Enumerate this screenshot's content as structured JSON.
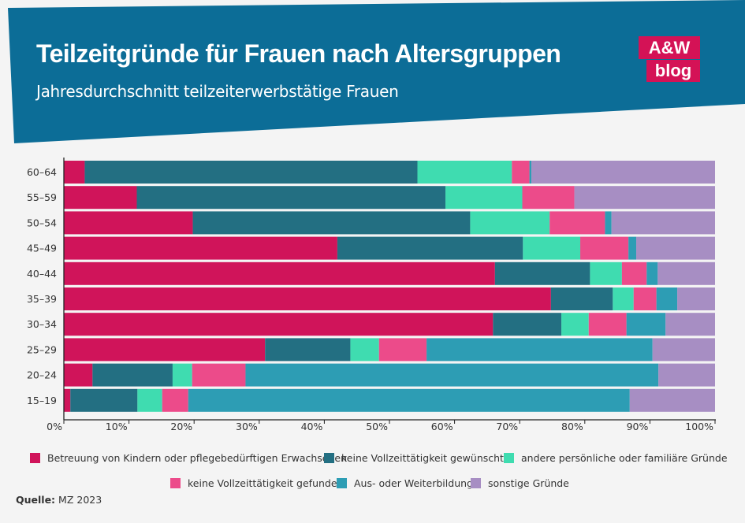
{
  "header": {
    "title": "Teilzeitgründe für Frauen nach Altersgruppen",
    "subtitle": "Jahresdurchschnitt teilzeiterwerbstätige Frauen",
    "banner_color": "#0c6d97"
  },
  "logo": {
    "line1": "A&W",
    "line2": "blog",
    "color": "#d41256"
  },
  "source": {
    "label": "Quelle:",
    "value": "MZ 2023"
  },
  "chart_data": {
    "type": "bar",
    "orientation": "horizontal",
    "stacked": true,
    "normalized": true,
    "title": "Teilzeitgründe für Frauen nach Altersgruppen",
    "xlabel": "",
    "ylabel": "",
    "xlim": [
      0,
      100
    ],
    "x_ticks": [
      "0%",
      "10%",
      "20%",
      "30%",
      "40%",
      "50%",
      "60%",
      "70%",
      "80%",
      "90%",
      "100%"
    ],
    "categories": [
      "60–64",
      "55–59",
      "50–54",
      "45–49",
      "40–44",
      "35–39",
      "30–34",
      "25–29",
      "20–24",
      "15–19"
    ],
    "legend_position": "bottom",
    "series": [
      {
        "name": "Betreuung von Kindern oder pflegebedürftigen Erwachsenen",
        "color": "#d0145a",
        "values": [
          3.2,
          11.2,
          19.8,
          42.0,
          66.2,
          74.8,
          65.9,
          30.9,
          4.4,
          1.0
        ]
      },
      {
        "name": "keine Vollzeittätigkeit gewünscht",
        "color": "#236f82",
        "values": [
          51.1,
          47.4,
          42.6,
          28.5,
          14.6,
          9.5,
          10.5,
          13.1,
          12.3,
          10.3
        ]
      },
      {
        "name": "andere persönliche oder familiäre Gründe",
        "color": "#3fdcb0",
        "values": [
          14.5,
          11.8,
          12.2,
          8.8,
          4.9,
          3.2,
          4.2,
          4.4,
          3.0,
          3.8
        ]
      },
      {
        "name": "keine Vollzeittätigkeit gefunden",
        "color": "#ec4b8a",
        "values": [
          2.7,
          8.0,
          8.5,
          7.4,
          3.8,
          3.5,
          5.8,
          7.3,
          8.2,
          4.0
        ]
      },
      {
        "name": "Aus- oder Weiterbildung",
        "color": "#2d9db4",
        "values": [
          0.3,
          0,
          1.0,
          1.2,
          1.7,
          3.2,
          6.0,
          34.7,
          63.4,
          67.8
        ]
      },
      {
        "name": "sonstige Gründe",
        "color": "#a78ec3",
        "values": [
          28.2,
          21.6,
          15.9,
          12.1,
          8.8,
          5.8,
          7.6,
          9.6,
          8.7,
          13.1
        ]
      }
    ]
  }
}
